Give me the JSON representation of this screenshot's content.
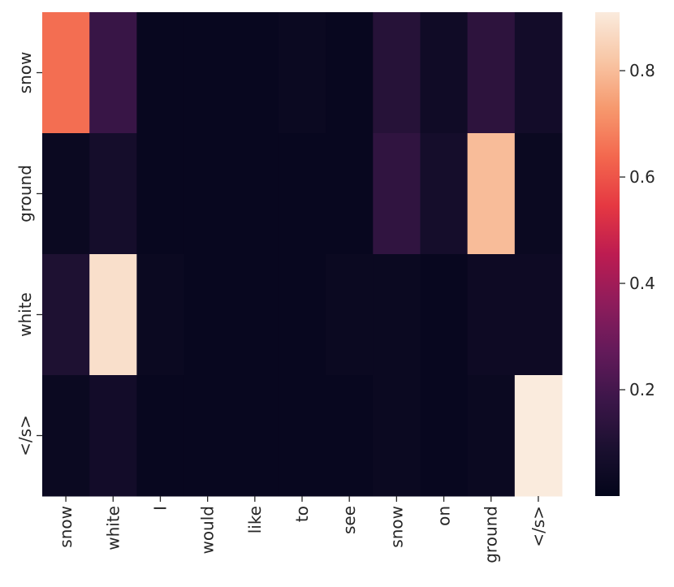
{
  "chart_data": {
    "type": "heatmap",
    "title": "",
    "xlabel": "",
    "ylabel": "",
    "x_categories": [
      "snow",
      "white",
      "I",
      "would",
      "like",
      "to",
      "see",
      "snow",
      "on",
      "ground",
      "</s>"
    ],
    "y_categories": [
      "snow",
      "ground",
      "white",
      "</s>"
    ],
    "values": [
      [
        0.65,
        0.17,
        0.02,
        0.02,
        0.02,
        0.03,
        0.02,
        0.12,
        0.05,
        0.14,
        0.06
      ],
      [
        0.03,
        0.07,
        0.02,
        0.02,
        0.02,
        0.02,
        0.02,
        0.15,
        0.07,
        0.8,
        0.03
      ],
      [
        0.1,
        0.88,
        0.03,
        0.02,
        0.02,
        0.02,
        0.03,
        0.03,
        0.02,
        0.04,
        0.04
      ],
      [
        0.03,
        0.06,
        0.02,
        0.02,
        0.02,
        0.02,
        0.02,
        0.03,
        0.02,
        0.03,
        0.91
      ]
    ],
    "colormap": "rocket",
    "colorbar": {
      "min": 0.0,
      "max": 0.91,
      "ticks": [
        0.2,
        0.4,
        0.6,
        0.8
      ],
      "tick_labels": [
        "0.2",
        "0.4",
        "0.6",
        "0.8"
      ]
    }
  }
}
